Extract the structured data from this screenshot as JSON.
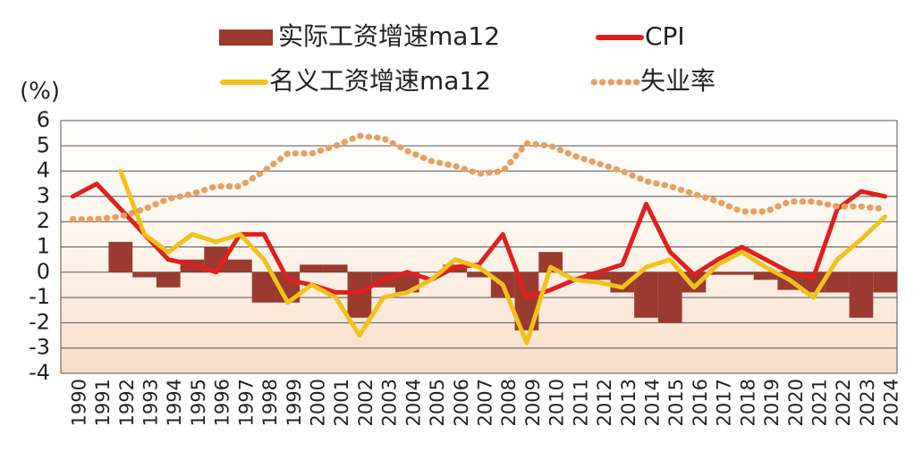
{
  "chart_data": {
    "type": "combo",
    "y_unit": "(%)",
    "categories": [
      "1990",
      "1991",
      "1992",
      "1993",
      "1994",
      "1995",
      "1996",
      "1997",
      "1998",
      "1999",
      "2000",
      "2001",
      "2002",
      "2003",
      "2004",
      "2005",
      "2006",
      "2007",
      "2008",
      "2009",
      "2010",
      "2011",
      "2012",
      "2013",
      "2014",
      "2015",
      "2016",
      "2017",
      "2018",
      "2019",
      "2020",
      "2021",
      "2022",
      "2023",
      "2024"
    ],
    "series": [
      {
        "name": "实际工资增速ma12",
        "kind": "bar",
        "color": "#9b3a2e",
        "values": [
          null,
          null,
          1.2,
          -0.2,
          -0.6,
          0.5,
          1.0,
          0.5,
          -1.2,
          -1.2,
          0.3,
          0.3,
          -1.8,
          -0.6,
          -0.8,
          0.0,
          0.3,
          -0.2,
          -1.0,
          -2.3,
          0.8,
          0.0,
          -0.3,
          -0.8,
          -1.8,
          -2.0,
          -0.8,
          -0.1,
          -0.1,
          -0.3,
          -0.7,
          -0.8,
          -0.8,
          -1.8,
          -0.8
        ]
      },
      {
        "name": "CPI",
        "kind": "line",
        "color": "#e02020",
        "values": [
          3.0,
          3.5,
          2.5,
          1.5,
          0.5,
          0.3,
          0.0,
          1.5,
          1.5,
          -0.3,
          -0.5,
          -0.8,
          -0.8,
          -0.3,
          0.0,
          -0.3,
          0.2,
          0.3,
          1.5,
          -1.0,
          -0.7,
          -0.3,
          0.0,
          0.3,
          2.7,
          0.8,
          -0.1,
          0.5,
          1.0,
          0.5,
          0.0,
          -0.2,
          2.5,
          3.2,
          3.0
        ]
      },
      {
        "name": "名义工资增速ma12",
        "kind": "line",
        "color": "#f2c21b",
        "values": [
          null,
          null,
          4.0,
          1.5,
          0.8,
          1.5,
          1.2,
          1.5,
          0.5,
          -1.2,
          -0.5,
          -1.0,
          -2.5,
          -1.0,
          -0.8,
          -0.3,
          0.5,
          0.2,
          -0.5,
          -2.8,
          0.2,
          -0.3,
          -0.4,
          -0.6,
          0.2,
          0.5,
          -0.6,
          0.3,
          0.8,
          0.2,
          -0.3,
          -1.0,
          0.5,
          1.3,
          2.2
        ]
      },
      {
        "name": "失业率",
        "kind": "dotted",
        "color": "#e8a060",
        "values": [
          2.1,
          2.1,
          2.2,
          2.5,
          2.9,
          3.1,
          3.4,
          3.4,
          4.0,
          4.7,
          4.7,
          5.0,
          5.4,
          5.3,
          4.8,
          4.4,
          4.2,
          3.9,
          4.0,
          5.1,
          5.0,
          4.6,
          4.3,
          4.0,
          3.6,
          3.4,
          3.1,
          2.8,
          2.4,
          2.4,
          2.8,
          2.8,
          2.6,
          2.6,
          2.5
        ]
      }
    ],
    "ylim": [
      -4,
      6
    ],
    "yticks": [
      -4,
      -3,
      -2,
      -1,
      0,
      1,
      2,
      3,
      4,
      5,
      6
    ],
    "grid": true
  }
}
